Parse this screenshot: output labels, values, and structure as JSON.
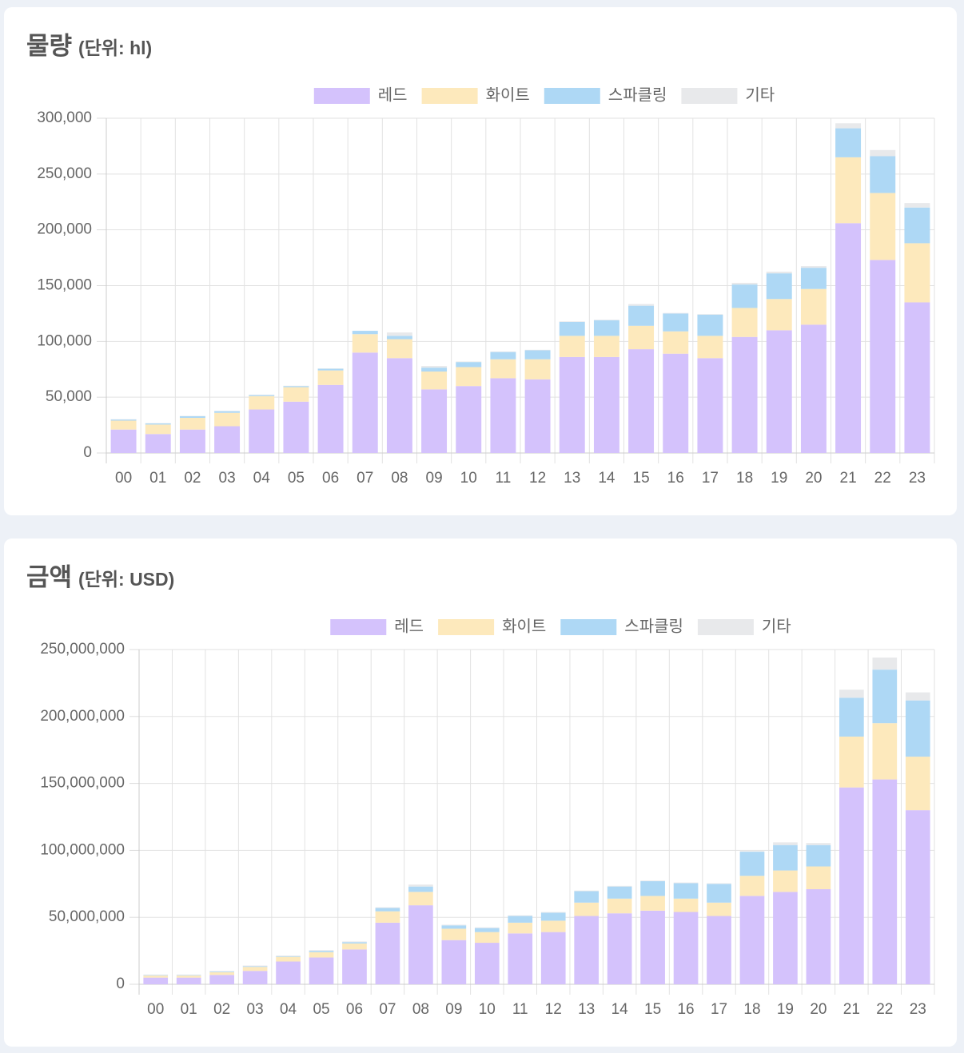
{
  "chart_data": [
    {
      "type": "bar",
      "stacked": true,
      "title": "물량",
      "unit": "(단위: hl)",
      "categories": [
        "00",
        "01",
        "02",
        "03",
        "04",
        "05",
        "06",
        "07",
        "08",
        "09",
        "10",
        "11",
        "12",
        "13",
        "14",
        "15",
        "16",
        "17",
        "18",
        "19",
        "20",
        "21",
        "22",
        "23"
      ],
      "series": [
        {
          "name": "레드",
          "color": "#d4c2fc",
          "values": [
            21000,
            17000,
            21000,
            24000,
            39000,
            46000,
            61000,
            90000,
            85000,
            57000,
            60000,
            67000,
            66000,
            86000,
            86000,
            93000,
            89000,
            85000,
            104000,
            110000,
            115000,
            206000,
            173000,
            135000
          ]
        },
        {
          "name": "화이트",
          "color": "#fde9bc",
          "values": [
            8000,
            8500,
            10500,
            12000,
            12000,
            13000,
            13000,
            16500,
            17000,
            16000,
            17000,
            17000,
            18000,
            19000,
            19000,
            21000,
            20000,
            20000,
            26000,
            28000,
            32000,
            59000,
            60000,
            53000
          ]
        },
        {
          "name": "스파클링",
          "color": "#aed8f5",
          "values": [
            1000,
            1000,
            1500,
            1500,
            1000,
            1000,
            1500,
            3000,
            3000,
            3500,
            4500,
            6500,
            8000,
            12500,
            14000,
            18000,
            16000,
            19000,
            21000,
            23000,
            19000,
            26000,
            33000,
            32000
          ]
        },
        {
          "name": "기타",
          "color": "#e8e9eb",
          "values": [
            300,
            300,
            300,
            300,
            300,
            300,
            300,
            0,
            3000,
            1500,
            500,
            500,
            500,
            500,
            500,
            1500,
            500,
            500,
            1500,
            1500,
            1500,
            4500,
            5500,
            4000
          ]
        }
      ],
      "ylim": [
        0,
        300000
      ],
      "yticks": [
        0,
        {
          "value": 50000,
          "label": "50,000"
        },
        {
          "value": 100000,
          "label": "100,000"
        },
        {
          "value": 150000,
          "label": "150,000"
        },
        {
          "value": 200000,
          "label": "200,000"
        },
        {
          "value": 250000,
          "label": "250,000"
        },
        {
          "value": 300000,
          "label": "300,000"
        }
      ],
      "grid": true
    },
    {
      "type": "bar",
      "stacked": true,
      "title": "금액",
      "unit": "(단위: USD)",
      "categories": [
        "00",
        "01",
        "02",
        "03",
        "04",
        "05",
        "06",
        "07",
        "08",
        "09",
        "10",
        "11",
        "12",
        "13",
        "14",
        "15",
        "16",
        "17",
        "18",
        "19",
        "20",
        "21",
        "22",
        "23"
      ],
      "series": [
        {
          "name": "레드",
          "color": "#d4c2fc",
          "values": [
            5000000,
            5000000,
            7000000,
            10000000,
            17000000,
            20000000,
            26000000,
            46000000,
            59000000,
            33000000,
            31000000,
            38000000,
            39000000,
            51000000,
            53000000,
            55000000,
            54000000,
            51000000,
            66000000,
            69000000,
            71000000,
            147000000,
            153000000,
            130000000
          ]
        },
        {
          "name": "화이트",
          "color": "#fde9bc",
          "values": [
            1500000,
            1500000,
            2000000,
            3000000,
            3500000,
            4000000,
            4500000,
            8500000,
            10000000,
            8500000,
            8000000,
            8000000,
            8500000,
            10000000,
            11000000,
            11000000,
            10000000,
            10000000,
            15000000,
            16000000,
            17000000,
            38000000,
            42000000,
            40000000
          ]
        },
        {
          "name": "스파클링",
          "color": "#aed8f5",
          "values": [
            300000,
            300000,
            500000,
            500000,
            500000,
            1000000,
            1000000,
            2500000,
            4000000,
            2500000,
            3000000,
            5000000,
            6000000,
            8500000,
            9000000,
            11000000,
            11500000,
            14000000,
            18000000,
            19000000,
            16000000,
            29000000,
            40000000,
            42000000
          ]
        },
        {
          "name": "기타",
          "color": "#e8e9eb",
          "values": [
            500000,
            500000,
            500000,
            500000,
            500000,
            500000,
            500000,
            500000,
            1500000,
            500000,
            500000,
            500000,
            500000,
            500000,
            500000,
            500000,
            500000,
            500000,
            500000,
            2000000,
            1500000,
            6000000,
            9000000,
            6000000
          ]
        }
      ],
      "ylim": [
        0,
        250000000
      ],
      "yticks": [
        0,
        {
          "value": 50000000,
          "label": "50,000,000"
        },
        {
          "value": 100000000,
          "label": "100,000,000"
        },
        {
          "value": 150000000,
          "label": "150,000,000"
        },
        {
          "value": 200000000,
          "label": "200,000,000"
        },
        {
          "value": 250000000,
          "label": "250,000,000"
        }
      ],
      "grid": true
    }
  ]
}
